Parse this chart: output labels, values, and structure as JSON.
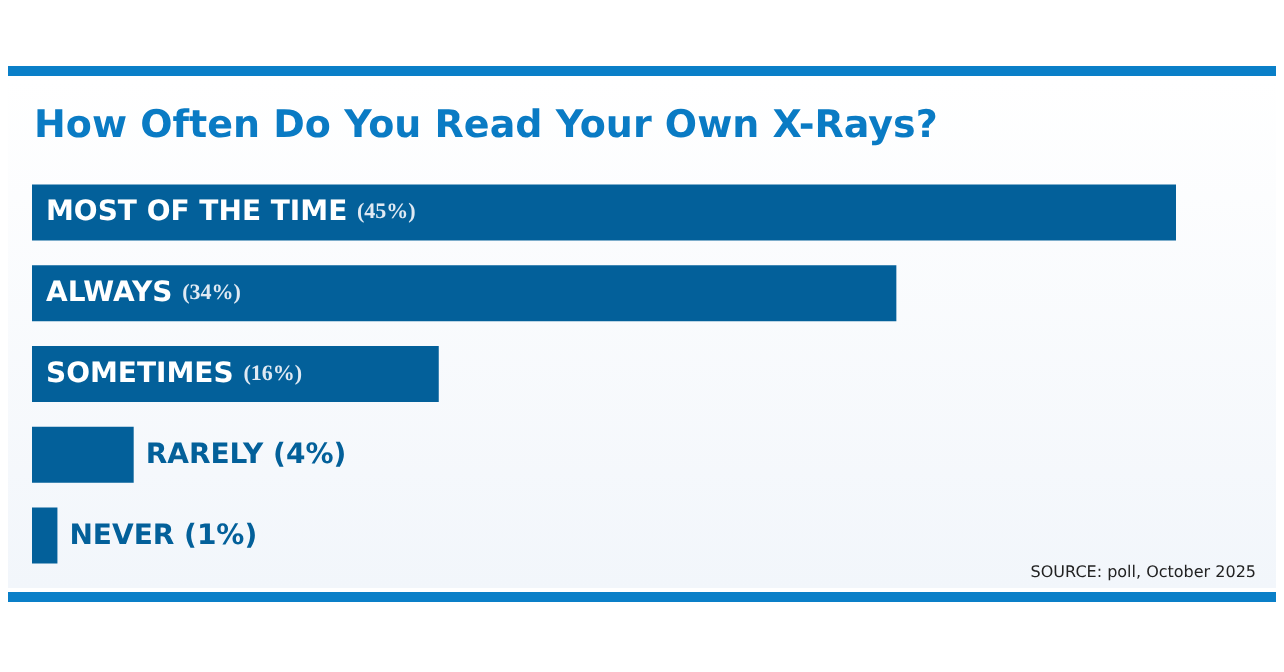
{
  "chart_data": {
    "type": "bar",
    "orientation": "horizontal",
    "title": "How Often Do You Read Your Own X-Rays?",
    "categories": [
      "MOST OF THE TIME",
      "ALWAYS",
      "SOMETIMES",
      "RARELY",
      "NEVER"
    ],
    "values": [
      45,
      34,
      16,
      4,
      1
    ],
    "value_labels": [
      "(45%)",
      "(34%)",
      "(16%)",
      "(4%)",
      "(1%)"
    ],
    "color": "#03609a",
    "annotations": [
      "SOURCE: poll, October 2025"
    ]
  }
}
